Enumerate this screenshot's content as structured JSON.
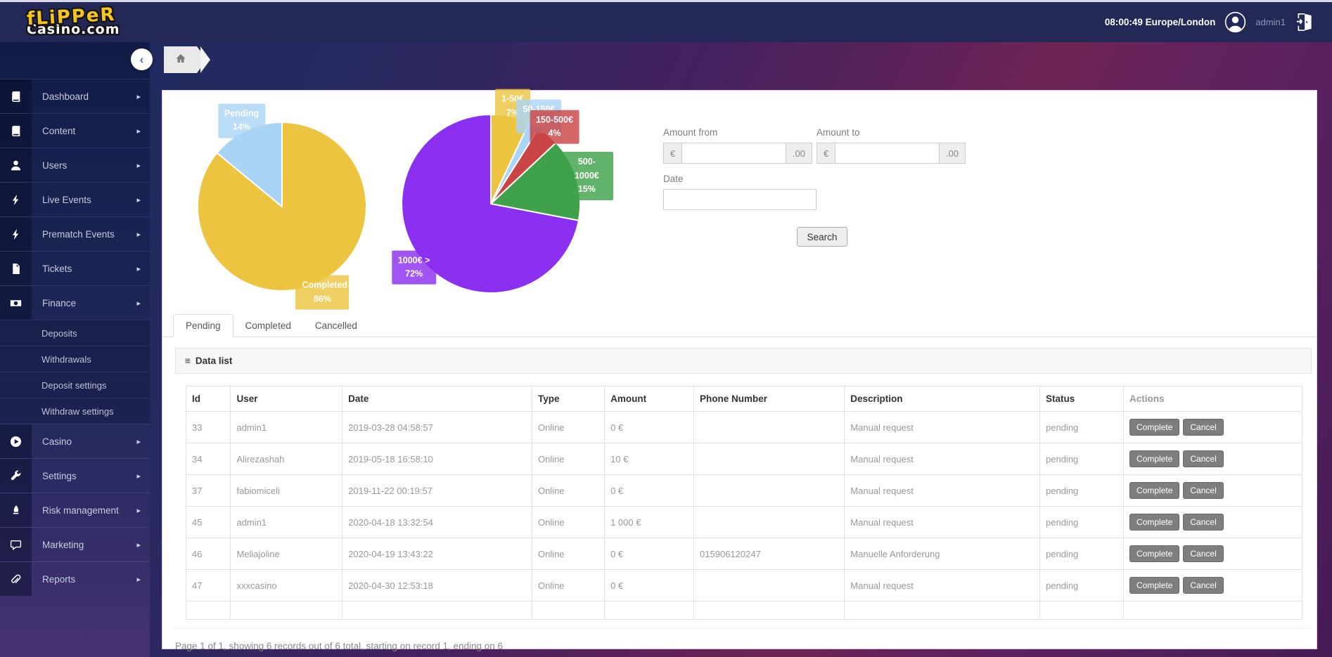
{
  "header": {
    "brand_line1": "fLiPPeR",
    "brand_line2": "Casino.com",
    "clock": "08:00:49 Europe/London",
    "username": "admin1"
  },
  "icons": {
    "collapse_glyph": "‹",
    "menu_glyph": "≡",
    "caret_glyph": "▸"
  },
  "sidebar": {
    "items": [
      {
        "label": "Dashboard",
        "icon": "journal"
      },
      {
        "label": "Content",
        "icon": "journal"
      },
      {
        "label": "Users",
        "icon": "user"
      },
      {
        "label": "Live Events",
        "icon": "bolt"
      },
      {
        "label": "Prematch Events",
        "icon": "bolt"
      },
      {
        "label": "Tickets",
        "icon": "file"
      },
      {
        "label": "Finance",
        "icon": "banknote",
        "submenu": [
          "Deposits",
          "Withdrawals",
          "Deposit settings",
          "Withdraw settings"
        ]
      },
      {
        "label": "Casino",
        "icon": "play-circle"
      },
      {
        "label": "Settings",
        "icon": "wrench"
      },
      {
        "label": "Risk management",
        "icon": "quill"
      },
      {
        "label": "Marketing",
        "icon": "chat"
      },
      {
        "label": "Reports",
        "icon": "paperclip"
      }
    ]
  },
  "filters": {
    "amount_from_label": "Amount from",
    "amount_to_label": "Amount to",
    "date_label": "Date",
    "currency_prefix": "€",
    "decimal_suffix": ".00",
    "search_label": "Search"
  },
  "tabs": [
    {
      "label": "Pending",
      "active": true
    },
    {
      "label": "Completed",
      "active": false
    },
    {
      "label": "Cancelled",
      "active": false
    }
  ],
  "panel": {
    "title": "Data list"
  },
  "table": {
    "columns": [
      {
        "key": "id",
        "label": "Id",
        "width": "4%"
      },
      {
        "key": "user",
        "label": "User",
        "width": "10%"
      },
      {
        "key": "date",
        "label": "Date",
        "width": "17%"
      },
      {
        "key": "type",
        "label": "Type",
        "width": "6.5%"
      },
      {
        "key": "amount",
        "label": "Amount",
        "width": "8%"
      },
      {
        "key": "phone",
        "label": "Phone Number",
        "width": "13.5%"
      },
      {
        "key": "description",
        "label": "Description",
        "width": "17.5%"
      },
      {
        "key": "status",
        "label": "Status",
        "width": "7.5%"
      },
      {
        "key": "actions",
        "label": "Actions",
        "width": "16%",
        "muted": true
      }
    ],
    "actions": {
      "complete": "Complete",
      "cancel": "Cancel"
    },
    "rows": [
      {
        "id": "33",
        "user": "admin1",
        "date": "2019-03-28 04:58:57",
        "type": "Online",
        "amount": "0 €",
        "phone": "",
        "description": "Manual request",
        "status": "pending"
      },
      {
        "id": "34",
        "user": "Alirezashah",
        "date": "2019-05-18 16:58:10",
        "type": "Online",
        "amount": "10 €",
        "phone": "",
        "description": "Manual request",
        "status": "pending"
      },
      {
        "id": "37",
        "user": "fabiomiceli",
        "date": "2019-11-22 00:19:57",
        "type": "Online",
        "amount": "0 €",
        "phone": "",
        "description": "Manual request",
        "status": "pending"
      },
      {
        "id": "45",
        "user": "admin1",
        "date": "2020-04-18 13:32:54",
        "type": "Online",
        "amount": "1 000 €",
        "phone": "",
        "description": "Manual request",
        "status": "pending"
      },
      {
        "id": "46",
        "user": "Meliajoline",
        "date": "2020-04-19 13:43:22",
        "type": "Online",
        "amount": "0 €",
        "phone": "015906120247",
        "description": "Manuelle Anforderung",
        "status": "pending"
      },
      {
        "id": "47",
        "user": "xxxcasino",
        "date": "2020-04-30 12:53:18",
        "type": "Online",
        "amount": "0 €",
        "phone": "",
        "description": "Manual request",
        "status": "pending"
      }
    ],
    "trailing_empty_row": true
  },
  "pagination": {
    "summary": "Page 1 of 1, showing 6 records out of 6 total, starting on record 1, ending on 6"
  },
  "chart_data": [
    {
      "type": "pie",
      "name": "pending-vs-completed",
      "legend_position": "none",
      "slices": [
        {
          "label": "Completed",
          "pct": 86,
          "color": "#ecc440"
        },
        {
          "label": "Pending",
          "pct": 14,
          "color": "#a9d4f5"
        }
      ]
    },
    {
      "type": "pie",
      "name": "amount-range-distribution",
      "legend_position": "none",
      "slices": [
        {
          "label": "1-50€",
          "pct": 7,
          "color": "#ecc440"
        },
        {
          "label": "50-150€",
          "pct": 2,
          "color": "#a9d4f5"
        },
        {
          "label": "150-500€",
          "pct": 4,
          "color": "#c94444"
        },
        {
          "label": "500-1000€",
          "pct": 15,
          "color": "#3fa24a"
        },
        {
          "label": "1000€ >",
          "pct": 72,
          "color": "#8b2ff0"
        }
      ]
    }
  ]
}
